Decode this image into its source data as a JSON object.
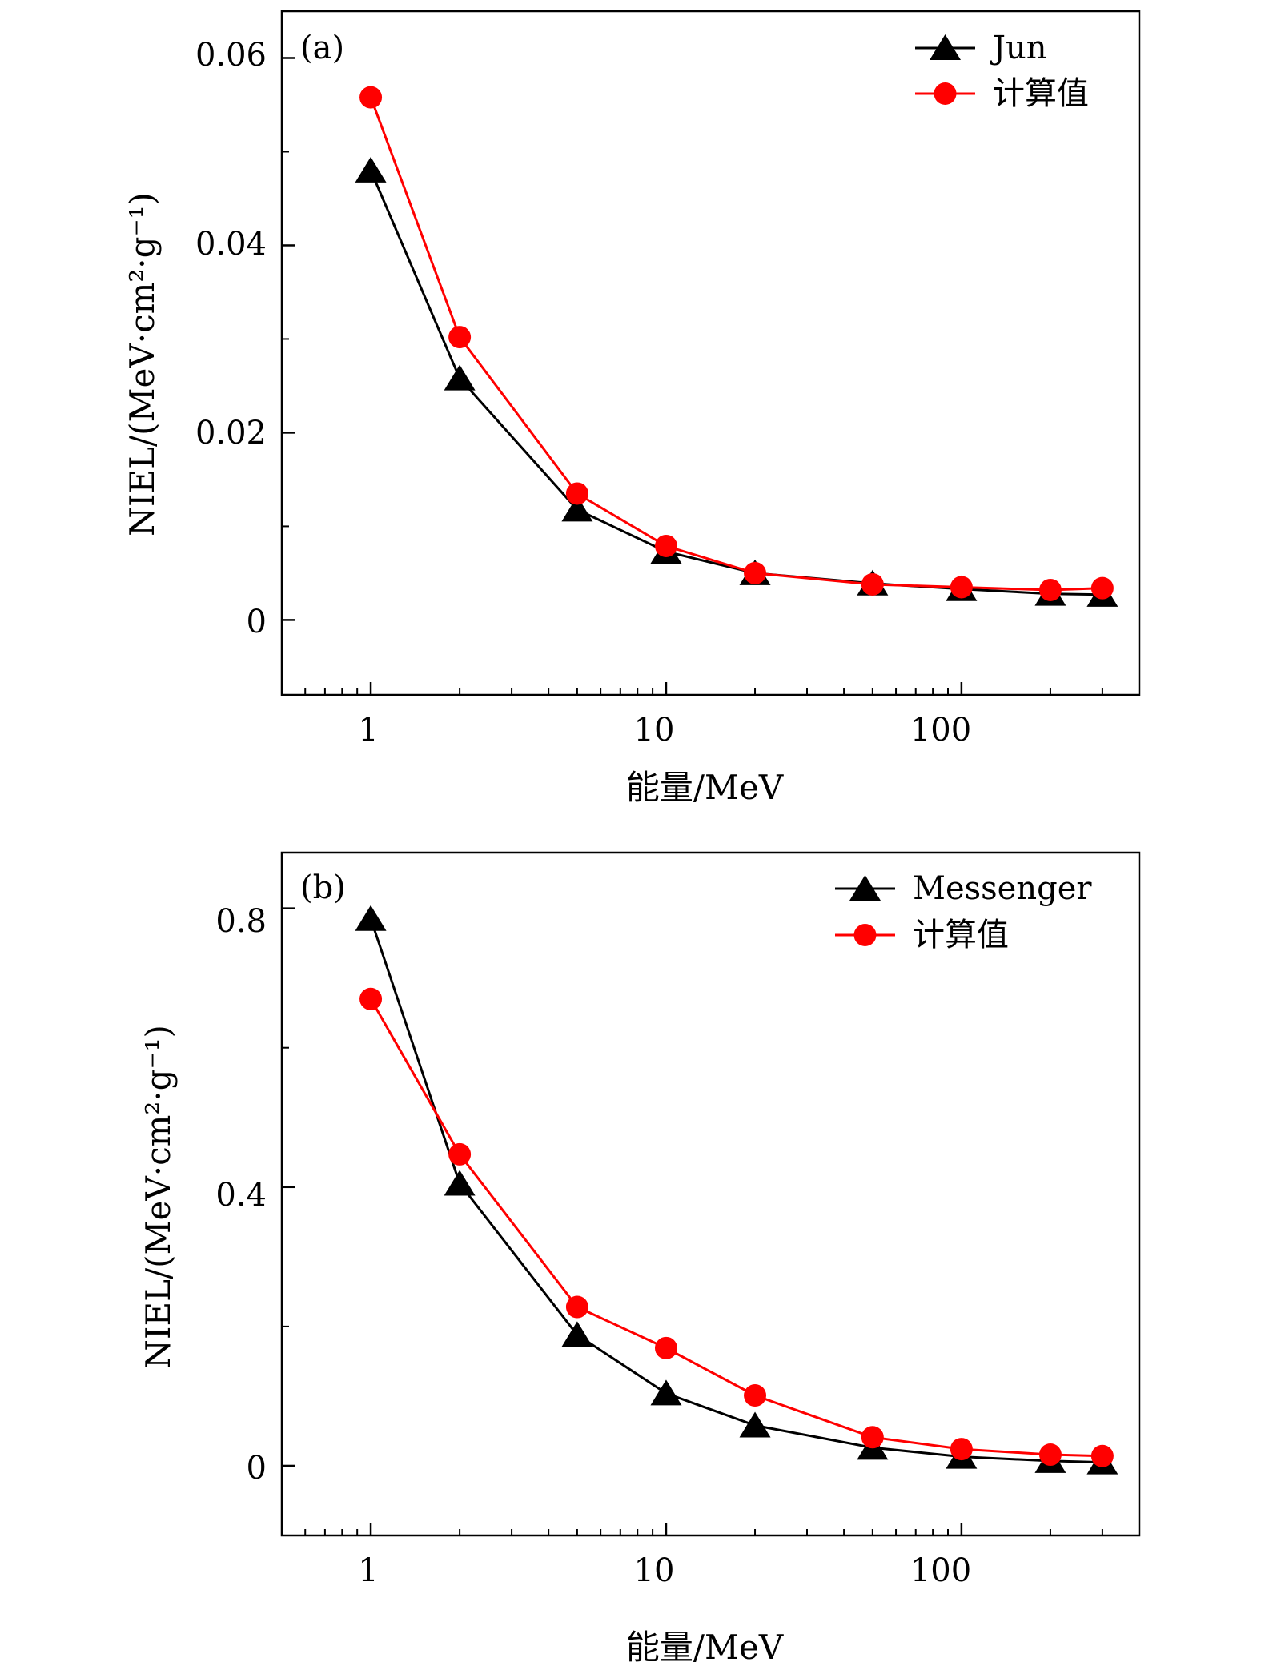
{
  "chart_data": [
    {
      "type": "line",
      "panel_label": "(a)",
      "xscale": "log",
      "xlim": [
        0.5,
        400
      ],
      "ylim": [
        -0.008,
        0.065
      ],
      "xticks": [
        {
          "value": 1,
          "label": "1"
        },
        {
          "value": 10,
          "label": "10"
        },
        {
          "value": 100,
          "label": "100"
        }
      ],
      "yticks": [
        {
          "value": 0,
          "label": "0"
        },
        {
          "value": 0.02,
          "label": "0.02"
        },
        {
          "value": 0.04,
          "label": "0.04"
        },
        {
          "value": 0.06,
          "label": "0.06"
        }
      ],
      "xlabel": "能量/MeV",
      "ylabel": "NIEL/(MeV·cm²·g⁻¹)",
      "legend_position": "top-right",
      "x": [
        1,
        2,
        5,
        10,
        20,
        50,
        100,
        200,
        300
      ],
      "series": [
        {
          "name": "Jun",
          "marker": "triangle",
          "color": "#000000",
          "values": [
            0.048,
            0.0258,
            0.0118,
            0.0073,
            0.005,
            0.0039,
            0.0033,
            0.0028,
            0.0027
          ]
        },
        {
          "name": "计算值",
          "marker": "circle",
          "color": "#ff0000",
          "values": [
            0.0558,
            0.0302,
            0.0135,
            0.0079,
            0.005,
            0.0038,
            0.0035,
            0.0032,
            0.0034
          ]
        }
      ]
    },
    {
      "type": "line",
      "panel_label": "(b)",
      "xscale": "log",
      "xlim": [
        0.5,
        400
      ],
      "ylim": [
        -0.1,
        0.88
      ],
      "xticks": [
        {
          "value": 1,
          "label": "1"
        },
        {
          "value": 10,
          "label": "10"
        },
        {
          "value": 100,
          "label": "100"
        }
      ],
      "yticks": [
        {
          "value": 0,
          "label": "0"
        },
        {
          "value": 0.4,
          "label": "0.4"
        },
        {
          "value": 0.8,
          "label": "0.8"
        }
      ],
      "xlabel": "能量/MeV",
      "ylabel": "NIEL/(MeV·cm²·g⁻¹)",
      "legend_position": "top-right",
      "x": [
        1,
        2,
        5,
        10,
        20,
        50,
        100,
        200,
        300
      ],
      "series": [
        {
          "name": "Messenger",
          "marker": "triangle",
          "color": "#000000",
          "values": [
            0.785,
            0.405,
            0.188,
            0.104,
            0.058,
            0.026,
            0.013,
            0.007,
            0.005
          ]
        },
        {
          "name": "计算值",
          "marker": "circle",
          "color": "#ff0000",
          "values": [
            0.67,
            0.447,
            0.228,
            0.169,
            0.101,
            0.041,
            0.024,
            0.016,
            0.014
          ]
        }
      ]
    }
  ]
}
